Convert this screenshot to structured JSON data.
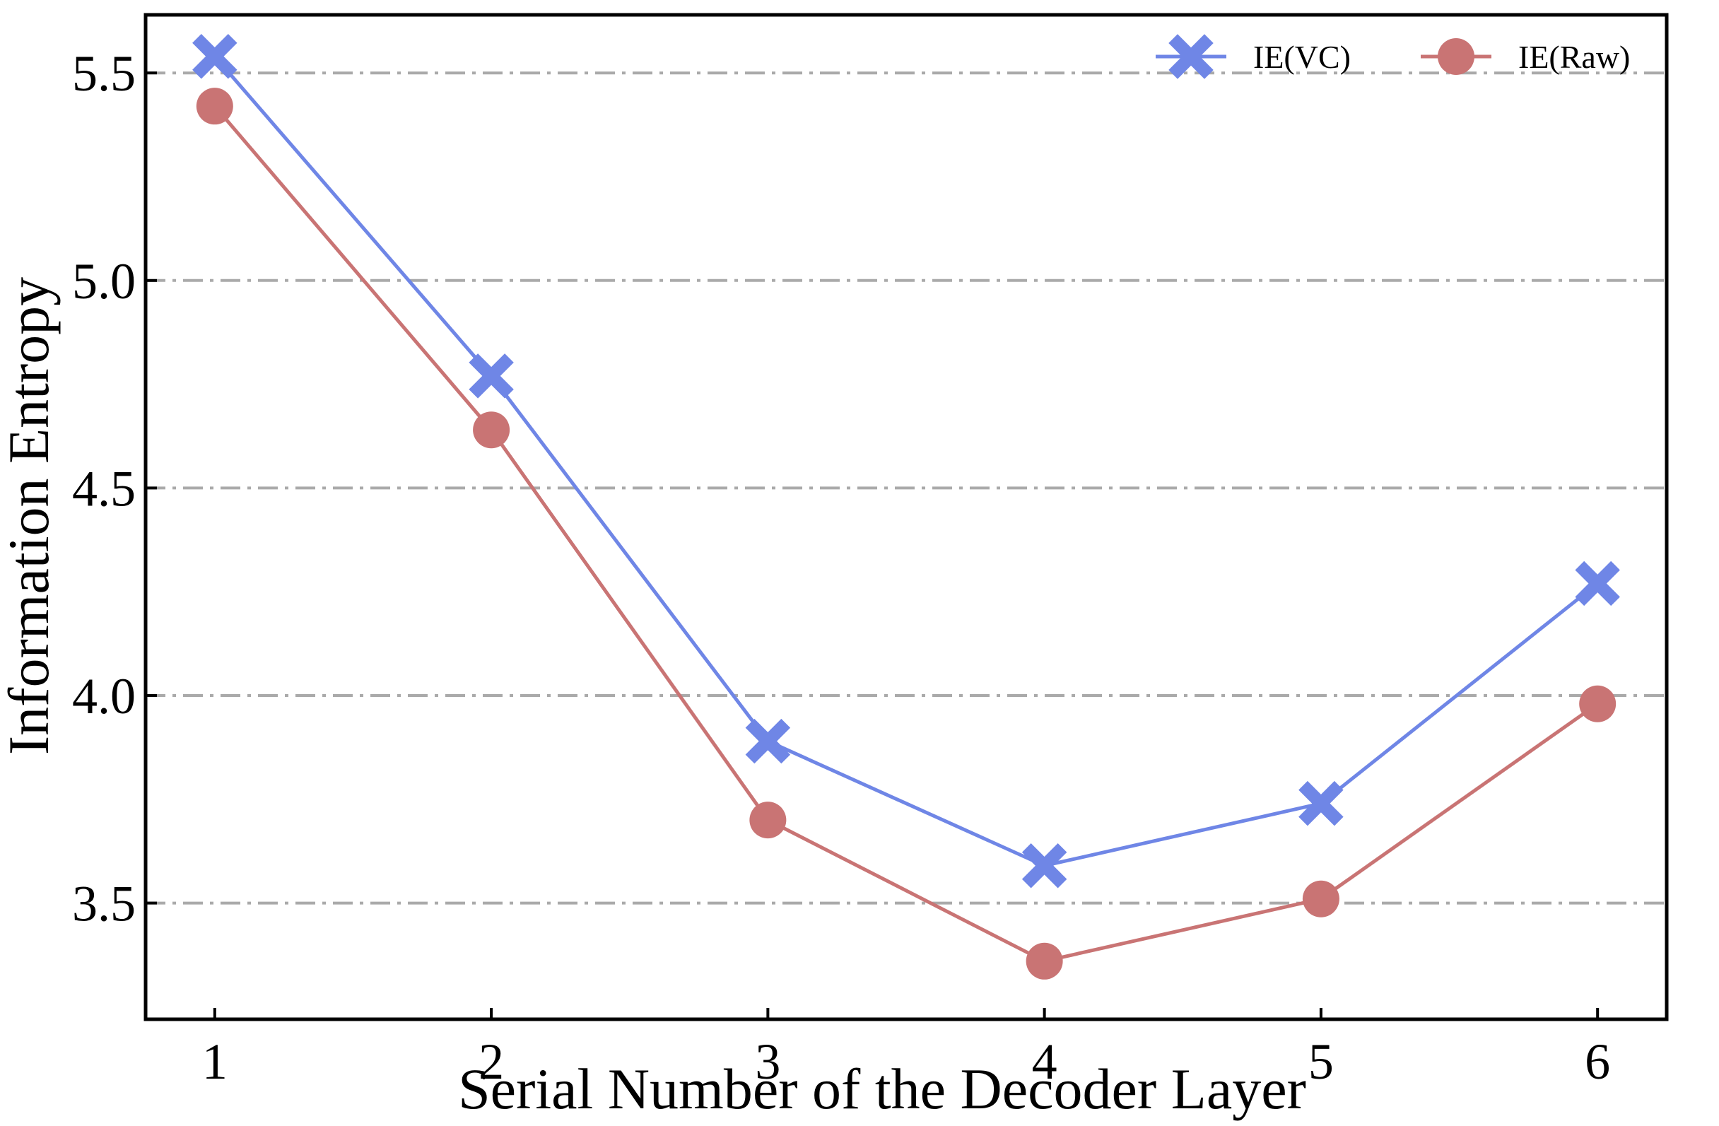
{
  "chart_data": {
    "type": "line",
    "title": "",
    "xlabel": "Serial Number of the Decoder Layer",
    "ylabel": "Information Entropy",
    "x": [
      1,
      2,
      3,
      4,
      5,
      6
    ],
    "xticks": [
      "1",
      "2",
      "3",
      "4",
      "5",
      "6"
    ],
    "xlim": [
      0.75,
      6.25
    ],
    "yticks": [
      "3.5",
      "4.0",
      "4.5",
      "5.0",
      "5.5"
    ],
    "ylim": [
      3.22,
      5.64
    ],
    "grid": "horizontal dash-dot",
    "legend_position": "top-right",
    "series": [
      {
        "name": "IE(VC)",
        "marker": "x-icon",
        "color": "#6f86e6",
        "values": [
          5.54,
          4.77,
          3.89,
          3.59,
          3.74,
          4.27
        ]
      },
      {
        "name": "IE(Raw)",
        "marker": "circle-icon",
        "color": "#c97474",
        "values": [
          5.42,
          4.64,
          3.7,
          3.36,
          3.51,
          3.98
        ]
      }
    ]
  }
}
